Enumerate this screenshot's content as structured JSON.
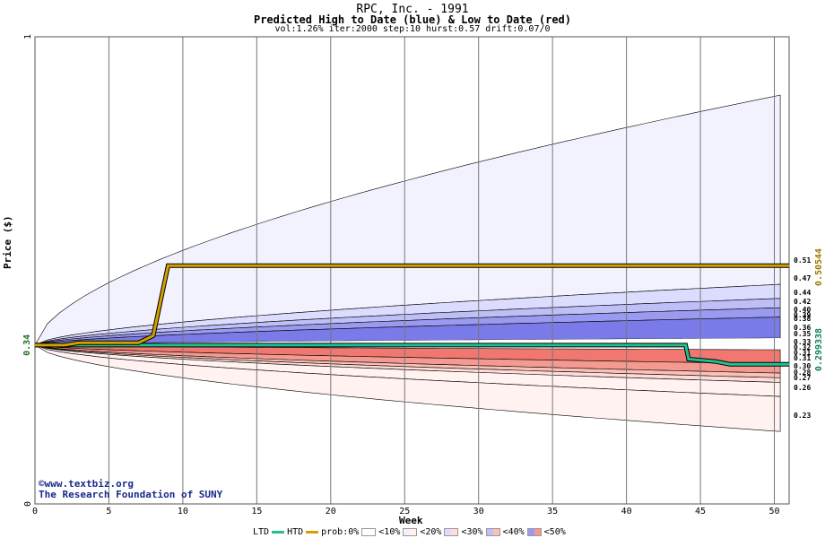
{
  "header": {
    "title": "RPC, Inc. - 1991",
    "subtitle": "Predicted High to Date (blue) &  Low to Date (red)",
    "params": "vol:1.26% iter:2000 step:10 hurst:0.57 drift:0.07/0"
  },
  "credit": {
    "line1": "©www.textbiz.org",
    "line2": "The Research Foundation of SUNY"
  },
  "legend": {
    "ltd": "LTD",
    "htd": "HTD",
    "prob": "prob:0%",
    "b10": "<10%",
    "b20": "<20%",
    "b30": "<30%",
    "b40": "<40%",
    "b50": "<50%"
  },
  "colors": {
    "htd_line": "#d4a000",
    "ltd_line": "#20c090",
    "blue_10": "#f2f2ff",
    "blue_20": "#dcdcff",
    "blue_30": "#bfbff8",
    "blue_40": "#9a9af0",
    "blue_50": "#7a7ae8",
    "red_10": "#fff2f0",
    "red_20": "#ffdcd8",
    "red_30": "#fcc0b8",
    "red_40": "#f59a90",
    "red_50": "#f07870",
    "left_tick": "#207020",
    "right_high": "#a07800",
    "right_low": "#108060"
  },
  "chart_data": {
    "type": "line",
    "xlabel": "Week",
    "ylabel": "Price ($)",
    "xlim": [
      0,
      51
    ],
    "ylim": [
      0,
      1
    ],
    "x_ticks": [
      0,
      5,
      10,
      15,
      20,
      25,
      30,
      35,
      40,
      45,
      50
    ],
    "y_ticks": [
      0,
      1
    ],
    "start_price": 0.34,
    "start_price_label": "0.34",
    "right_labels_high": [
      "0.51",
      "0.47",
      "0.44",
      "0.42",
      "0.40",
      "0.39",
      "0.38",
      "0.36",
      "0.35"
    ],
    "right_labels_low": [
      "0.33",
      "0.32",
      "0.31",
      "0.31",
      "0.30",
      "0.28",
      "0.27",
      "0.26",
      "0.23"
    ],
    "right_value_high": "0.50544",
    "right_value_low": "0.299338",
    "high_quantiles": [
      {
        "band": "<10%",
        "end": 0.875
      },
      {
        "band": "<20%",
        "end": 0.47
      },
      {
        "band": "<30%",
        "end": 0.44
      },
      {
        "band": "<40%",
        "end": 0.42
      },
      {
        "band": "<50%",
        "end": 0.4
      }
    ],
    "low_quantiles": [
      {
        "band": "<50%",
        "end": 0.3
      },
      {
        "band": "<40%",
        "end": 0.28
      },
      {
        "band": "<30%",
        "end": 0.27
      },
      {
        "band": "<20%",
        "end": 0.26
      },
      {
        "band": "<10%",
        "end": 0.23
      }
    ],
    "band_outer_high_end": 0.875,
    "band_outer_low_end": 0.155,
    "series": [
      {
        "name": "HTD",
        "x": [
          0,
          2,
          3,
          7,
          8,
          8.6,
          9,
          10,
          51
        ],
        "y": [
          0.34,
          0.34,
          0.345,
          0.345,
          0.36,
          0.45,
          0.51,
          0.51,
          0.51
        ]
      },
      {
        "name": "LTD",
        "x": [
          0,
          44,
          44.2,
          46,
          47,
          51
        ],
        "y": [
          0.34,
          0.34,
          0.31,
          0.305,
          0.299,
          0.299
        ]
      }
    ]
  }
}
